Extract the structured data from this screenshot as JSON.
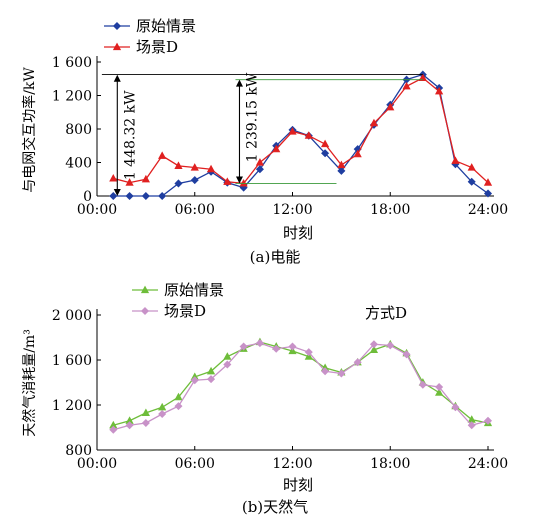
{
  "chart_data": [
    {
      "type": "line",
      "caption": "(a)电能",
      "ylabel": "与电网交互功率/kW",
      "xlabel": "时刻",
      "ylim": [
        0,
        1600
      ],
      "yticks": [
        "0",
        "400",
        "800",
        "1 200",
        "1 600"
      ],
      "xlim": [
        0,
        24
      ],
      "xticks": [
        "00:00",
        "06:00",
        "12:00",
        "18:00",
        "24:00"
      ],
      "legend_position": "top-left",
      "x": [
        1,
        2,
        3,
        4,
        5,
        6,
        7,
        8,
        9,
        10,
        11,
        12,
        13,
        14,
        15,
        16,
        17,
        18,
        19,
        20,
        21,
        22,
        23,
        24
      ],
      "series": [
        {
          "name": "原始情景",
          "color": "#1f3ea0",
          "marker": "diamond",
          "values": [
            0,
            0,
            0,
            0,
            150,
            190,
            290,
            160,
            100,
            320,
            600,
            790,
            720,
            510,
            300,
            560,
            850,
            1090,
            1390,
            1450,
            1290,
            380,
            170,
            30
          ]
        },
        {
          "name": "场景D",
          "color": "#e02020",
          "marker": "triangle",
          "values": [
            210,
            160,
            200,
            480,
            360,
            340,
            320,
            170,
            150,
            400,
            560,
            770,
            720,
            620,
            370,
            500,
            870,
            1060,
            1310,
            1410,
            1250,
            420,
            340,
            160
          ]
        }
      ],
      "annotations": [
        {
          "label": "1 448.32 kW",
          "x": 1,
          "from": 0,
          "to": 1448.32
        },
        {
          "label": "1 239.15 kW",
          "x": 8.5,
          "from": 150,
          "to": 1389.15
        }
      ]
    },
    {
      "type": "line",
      "caption": "(b)天然气",
      "ylabel": "天然气消耗量/m³",
      "xlabel": "时刻",
      "ylim": [
        800,
        2000
      ],
      "yticks": [
        "800",
        "1 200",
        "1 600",
        "2 000"
      ],
      "xlim": [
        0,
        24
      ],
      "xticks": [
        "00:00",
        "06:00",
        "12:00",
        "18:00",
        "24:00"
      ],
      "legend_position": "top-left",
      "annotation_text": "方式D",
      "x": [
        1,
        2,
        3,
        4,
        5,
        6,
        7,
        8,
        9,
        10,
        11,
        12,
        13,
        14,
        15,
        16,
        17,
        18,
        19,
        20,
        21,
        22,
        23,
        24
      ],
      "series": [
        {
          "name": "原始情景",
          "color": "#6ebd3a",
          "marker": "triangle",
          "values": [
            1020,
            1060,
            1130,
            1180,
            1270,
            1450,
            1500,
            1630,
            1700,
            1760,
            1720,
            1680,
            1630,
            1530,
            1490,
            1580,
            1690,
            1740,
            1660,
            1400,
            1310,
            1190,
            1070,
            1040
          ]
        },
        {
          "name": "场景D",
          "color": "#c892c8",
          "marker": "diamond",
          "values": [
            980,
            1020,
            1040,
            1120,
            1190,
            1420,
            1430,
            1560,
            1720,
            1750,
            1700,
            1720,
            1670,
            1500,
            1480,
            1580,
            1740,
            1730,
            1650,
            1380,
            1360,
            1180,
            1020,
            1060
          ]
        }
      ]
    }
  ]
}
